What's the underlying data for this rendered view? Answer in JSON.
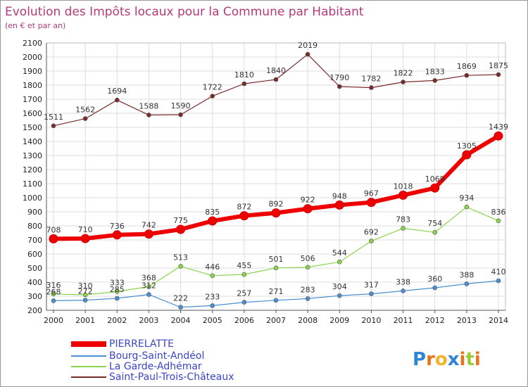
{
  "chart_data": {
    "type": "line",
    "title": "Evolution des Impôts locaux pour la Commune par Habitant",
    "subtitle": "(en € et par an)",
    "x": [
      "2000",
      "2001",
      "2002",
      "2003",
      "2004",
      "2005",
      "2006",
      "2007",
      "2008",
      "2009",
      "2010",
      "2011",
      "2012",
      "2013",
      "2014"
    ],
    "ylim": [
      200,
      2100
    ],
    "yticks": [
      200,
      300,
      400,
      500,
      600,
      700,
      800,
      900,
      1000,
      1100,
      1200,
      1300,
      1400,
      1500,
      1600,
      1700,
      1800,
      1900,
      2000,
      2100
    ],
    "grid": true,
    "legend_position": "bottom-left",
    "series": [
      {
        "name": "PIERRELATTE",
        "color": "#ee0000",
        "values": [
          708,
          710,
          736,
          742,
          775,
          835,
          872,
          892,
          922,
          948,
          967,
          1018,
          1069,
          1305,
          1439
        ]
      },
      {
        "name": "Bourg-Saint-Andéol",
        "color": "#4a8fd0",
        "values": [
          268,
          272,
          285,
          312,
          222,
          233,
          257,
          271,
          283,
          304,
          317,
          338,
          360,
          388,
          410
        ]
      },
      {
        "name": "La Garde-Adhémar",
        "color": "#8bd34a",
        "values": [
          316,
          310,
          333,
          368,
          513,
          446,
          455,
          501,
          506,
          544,
          692,
          783,
          754,
          934,
          836
        ]
      },
      {
        "name": "Saint-Paul-Trois-Châteaux",
        "color": "#7a2a2a",
        "values": [
          1511,
          1562,
          1694,
          1588,
          1590,
          1722,
          1810,
          1840,
          2019,
          1790,
          1782,
          1822,
          1833,
          1869,
          1875
        ]
      }
    ]
  },
  "logo": {
    "text": "Proxiti",
    "letters": [
      "P",
      "r",
      "o",
      "x",
      "i",
      "t",
      "i"
    ],
    "colors": [
      "#2e86d6",
      "#e8731d",
      "#f2b42b",
      "#2e86d6",
      "#e8731d",
      "#9acb3c",
      "#e8731d"
    ]
  }
}
